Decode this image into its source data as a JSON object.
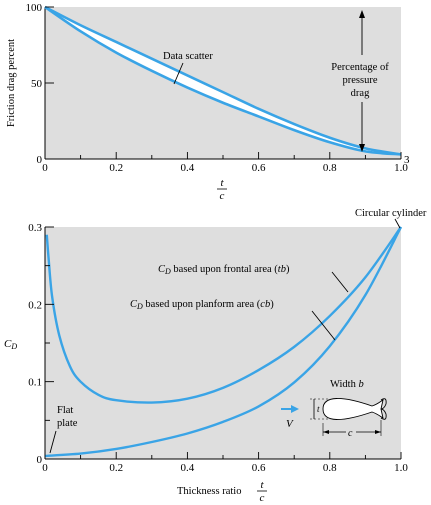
{
  "colors": {
    "panel": "#dedede",
    "curve": "#3aa4e6",
    "axis": "#000000",
    "arrow": "#3aa4e6"
  },
  "chart_data": [
    {
      "type": "line",
      "title": "",
      "ylabel": "Friction drag percent",
      "xlabel_num": "t",
      "xlabel_den": "c",
      "xlim": [
        0,
        1.0
      ],
      "ylim": [
        0,
        100
      ],
      "x_ticks": [
        0,
        0.2,
        0.4,
        0.6,
        0.8,
        1.0
      ],
      "x_tick_labels": [
        "0",
        "0.2",
        "0.4",
        "0.6",
        "0.8",
        "1.0"
      ],
      "y_ticks": [
        0,
        50,
        100
      ],
      "y_tick_labels": [
        "0",
        "50",
        "100"
      ],
      "right_end_label": "3",
      "series": [
        {
          "x": [
            0,
            0.1,
            0.2,
            0.3,
            0.4,
            0.5,
            0.6,
            0.7,
            0.8,
            0.9,
            1.0
          ],
          "y": [
            100,
            84,
            70,
            58,
            47,
            37,
            28,
            19,
            11,
            5,
            3
          ]
        },
        {
          "x": [
            0,
            0.1,
            0.2,
            0.3,
            0.4,
            0.5,
            0.6,
            0.7,
            0.8,
            0.9,
            1.0
          ],
          "y": [
            100,
            88,
            77,
            66,
            55,
            44,
            33,
            23,
            14,
            7,
            3
          ]
        }
      ],
      "annotations": {
        "data_scatter": "Data scatter",
        "pressure_drag": [
          "Percentage of",
          "pressure",
          "drag"
        ]
      }
    },
    {
      "type": "line",
      "title": "",
      "ylabel": "C",
      "ylabel_sub": "D",
      "xlabel": "Thickness ratio",
      "xlabel_num": "t",
      "xlabel_den": "c",
      "xlim": [
        0,
        1.0
      ],
      "ylim": [
        0,
        0.3
      ],
      "x_ticks": [
        0,
        0.2,
        0.4,
        0.6,
        0.8,
        1.0
      ],
      "x_tick_labels": [
        "0",
        "0.2",
        "0.4",
        "0.6",
        "0.8",
        "1.0"
      ],
      "y_ticks": [
        0,
        0.1,
        0.2,
        0.3
      ],
      "y_tick_labels": [
        "0",
        "0.1",
        "0.2",
        "0.3"
      ],
      "series": [
        {
          "name": "C_D based upon frontal area (tb)",
          "x": [
            0.005,
            0.01,
            0.02,
            0.04,
            0.07,
            0.1,
            0.15,
            0.2,
            0.3,
            0.4,
            0.5,
            0.6,
            0.7,
            0.8,
            0.9,
            1.0
          ],
          "y": [
            0.29,
            0.26,
            0.21,
            0.16,
            0.12,
            0.1,
            0.083,
            0.076,
            0.073,
            0.078,
            0.092,
            0.115,
            0.145,
            0.185,
            0.235,
            0.3
          ]
        },
        {
          "name": "C_D based upon planform area (cb)",
          "x": [
            0,
            0.1,
            0.2,
            0.3,
            0.4,
            0.5,
            0.6,
            0.7,
            0.8,
            0.9,
            1.0
          ],
          "y": [
            0.004,
            0.007,
            0.013,
            0.022,
            0.033,
            0.048,
            0.068,
            0.099,
            0.146,
            0.212,
            0.3
          ]
        }
      ],
      "annotations": {
        "circular_cylinder": "Circular cylinder",
        "frontal_prefix": "C",
        "frontal_sub": "D",
        "frontal_text": " based upon frontal area (",
        "frontal_var": "tb",
        "frontal_close": ")",
        "planform_prefix": "C",
        "planform_sub": "D",
        "planform_text": " based upon planform area (",
        "planform_var": "cb",
        "planform_close": ")",
        "flat_plate": [
          "Flat",
          "plate"
        ],
        "width": "Width ",
        "width_var": "b",
        "velocity": "V",
        "thickness": "t",
        "chord": "c"
      }
    }
  ]
}
